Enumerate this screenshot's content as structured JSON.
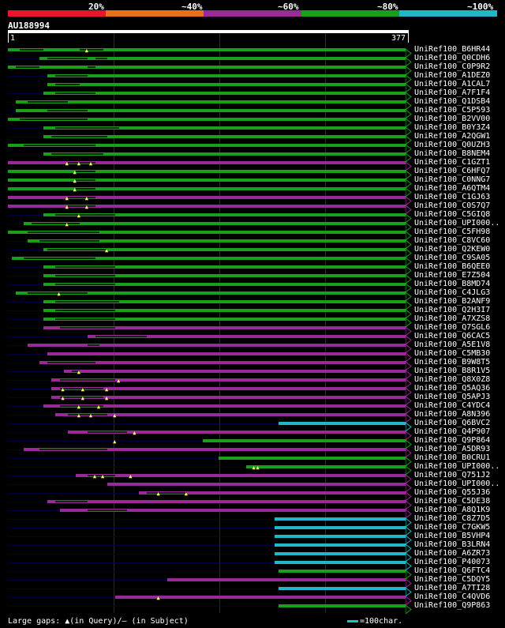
{
  "legend": {
    "labels": [
      "20%",
      "~40%",
      "~60%",
      "~80%",
      "~100%"
    ],
    "colors": [
      "#e8152d",
      "#e8701a",
      "#9a2a98",
      "#19a019",
      "#20b8c8"
    ]
  },
  "query": {
    "id": "AU188994",
    "start": "1",
    "end": "377"
  },
  "footer": {
    "gaps_text": "Large gaps: ▲(in Query)/– (in Subject)",
    "key_text": "=100char."
  },
  "rows": [
    {
      "label": "UniRef100_B6HR44",
      "color": "#19a019",
      "s": 0.0,
      "gaps": [
        [
          0.03,
          0.09
        ],
        [
          0.18,
          0.24
        ]
      ],
      "tri": [
        0.2
      ]
    },
    {
      "label": "UniRef100_Q0CDH6",
      "color": "#19a019",
      "s": 0.08,
      "gaps": [
        [
          0.1,
          0.2
        ],
        [
          0.22,
          0.25
        ]
      ],
      "tri": []
    },
    {
      "label": "UniRef100_C0P9R2",
      "color": "#19a019",
      "s": 0.0,
      "gaps": [
        [
          0.02,
          0.08
        ],
        [
          0.2,
          0.22
        ]
      ],
      "tri": []
    },
    {
      "label": "UniRef100_A1DEZ0",
      "color": "#19a019",
      "s": 0.1,
      "gaps": [
        [
          0.12,
          0.2
        ]
      ],
      "tri": []
    },
    {
      "label": "UniRef100_A1CAL7",
      "color": "#19a019",
      "s": 0.1,
      "gaps": [
        [
          0.12,
          0.18
        ]
      ],
      "tri": []
    },
    {
      "label": "UniRef100_A7F1F4",
      "color": "#19a019",
      "s": 0.09,
      "gaps": [
        [
          0.12,
          0.22
        ]
      ],
      "tri": []
    },
    {
      "label": "UniRef100_Q1DSB4",
      "color": "#19a019",
      "s": 0.02,
      "gaps": [
        [
          0.05,
          0.15
        ]
      ],
      "tri": []
    },
    {
      "label": "UniRef100_C5P593",
      "color": "#19a019",
      "s": 0.02,
      "gaps": [
        [
          0.1,
          0.2
        ]
      ],
      "tri": []
    },
    {
      "label": "UniRef100_B2VV00",
      "color": "#19a019",
      "s": 0.0,
      "gaps": [
        [
          0.03,
          0.2
        ]
      ],
      "tri": []
    },
    {
      "label": "UniRef100_B0Y3Z4",
      "color": "#19a019",
      "s": 0.09,
      "gaps": [
        [
          0.12,
          0.28
        ]
      ],
      "tri": []
    },
    {
      "label": "UniRef100_A2QGW1",
      "color": "#19a019",
      "s": 0.09,
      "gaps": [
        [
          0.11,
          0.25
        ]
      ],
      "tri": []
    },
    {
      "label": "UniRef100_Q0UZH3",
      "color": "#19a019",
      "s": 0.0,
      "gaps": [
        [
          0.04,
          0.22
        ]
      ],
      "tri": []
    },
    {
      "label": "UniRef100_B8NEM4",
      "color": "#19a019",
      "s": 0.09,
      "gaps": [
        [
          0.11,
          0.24
        ]
      ],
      "tri": []
    },
    {
      "label": "UniRef100_C1GZT1",
      "color": "#9a2a98",
      "s": 0.0,
      "gaps": [
        [
          0.15,
          0.22
        ]
      ],
      "tri": [
        0.15,
        0.18,
        0.21
      ]
    },
    {
      "label": "UniRef100_C6HFQ7",
      "color": "#19a019",
      "s": 0.0,
      "gaps": [
        [
          0.17,
          0.22
        ]
      ],
      "tri": [
        0.17
      ]
    },
    {
      "label": "UniRef100_C0NNG7",
      "color": "#19a019",
      "s": 0.0,
      "gaps": [
        [
          0.17,
          0.22
        ]
      ],
      "tri": [
        0.17
      ]
    },
    {
      "label": "UniRef100_A6QTM4",
      "color": "#19a019",
      "s": 0.0,
      "gaps": [
        [
          0.17,
          0.22
        ]
      ],
      "tri": [
        0.17
      ]
    },
    {
      "label": "UniRef100_C1GJ63",
      "color": "#9a2a98",
      "s": 0.0,
      "gaps": [
        [
          0.15,
          0.22
        ]
      ],
      "tri": [
        0.15,
        0.2
      ]
    },
    {
      "label": "UniRef100_C0S7Q7",
      "color": "#9a2a98",
      "s": 0.0,
      "gaps": [
        [
          0.15,
          0.22
        ]
      ],
      "tri": [
        0.15,
        0.2
      ]
    },
    {
      "label": "UniRef100_C5GIQ8",
      "color": "#19a019",
      "s": 0.09,
      "gaps": [
        [
          0.12,
          0.27
        ]
      ],
      "tri": [
        0.18
      ]
    },
    {
      "label": "UniRef100_UPI000..",
      "color": "#19a019",
      "s": 0.04,
      "gaps": [
        [
          0.06,
          0.18
        ]
      ],
      "tri": [
        0.15
      ]
    },
    {
      "label": "UniRef100_C5FH98",
      "color": "#19a019",
      "s": 0.0,
      "gaps": [
        [
          0.05,
          0.23
        ]
      ],
      "tri": []
    },
    {
      "label": "UniRef100_C8VC60",
      "color": "#19a019",
      "s": 0.05,
      "gaps": [
        [
          0.08,
          0.23
        ]
      ],
      "tri": []
    },
    {
      "label": "UniRef100_Q2KEW0",
      "color": "#19a019",
      "s": 0.09,
      "gaps": [
        [
          0.1,
          0.25
        ]
      ],
      "tri": [
        0.25
      ]
    },
    {
      "label": "UniRef100_C9SA05",
      "color": "#19a019",
      "s": 0.01,
      "gaps": [
        [
          0.04,
          0.22
        ]
      ],
      "tri": []
    },
    {
      "label": "UniRef100_B6QEE0",
      "color": "#19a019",
      "s": 0.09,
      "gaps": [
        [
          0.12,
          0.27
        ]
      ],
      "tri": []
    },
    {
      "label": "UniRef100_E7Z504",
      "color": "#19a019",
      "s": 0.09,
      "gaps": [
        [
          0.12,
          0.27
        ]
      ],
      "tri": []
    },
    {
      "label": "UniRef100_B8MD74",
      "color": "#19a019",
      "s": 0.09,
      "gaps": [
        [
          0.12,
          0.27
        ]
      ],
      "tri": []
    },
    {
      "label": "UniRef100_C4JLG3",
      "color": "#19a019",
      "s": 0.02,
      "gaps": [
        [
          0.05,
          0.2
        ]
      ],
      "tri": [
        0.13
      ]
    },
    {
      "label": "UniRef100_B2ANF9",
      "color": "#19a019",
      "s": 0.09,
      "gaps": [
        [
          0.12,
          0.28
        ]
      ],
      "tri": []
    },
    {
      "label": "UniRef100_Q2H3I7",
      "color": "#19a019",
      "s": 0.09,
      "gaps": [
        [
          0.12,
          0.27
        ]
      ],
      "tri": []
    },
    {
      "label": "UniRef100_A7XZS8",
      "color": "#19a019",
      "s": 0.09,
      "gaps": [
        [
          0.12,
          0.27
        ]
      ],
      "tri": []
    },
    {
      "label": "UniRef100_Q7SGL6",
      "color": "#9a2a98",
      "s": 0.09,
      "gaps": [
        [
          0.13,
          0.27
        ]
      ],
      "tri": []
    },
    {
      "label": "UniRef100_Q6CAC5",
      "color": "#9a2a98",
      "s": 0.2,
      "gaps": [
        [
          0.22,
          0.35
        ]
      ],
      "tri": []
    },
    {
      "label": "UniRef100_A5E1V8",
      "color": "#9a2a98",
      "s": 0.05,
      "gaps": [
        [
          0.2,
          0.23
        ]
      ],
      "tri": []
    },
    {
      "label": "UniRef100_C5MB30",
      "color": "#9a2a98",
      "s": 0.1,
      "gaps": [],
      "tri": []
    },
    {
      "label": "UniRef100_B9W8T5",
      "color": "#9a2a98",
      "s": 0.08,
      "gaps": [
        [
          0.1,
          0.22
        ]
      ],
      "tri": []
    },
    {
      "label": "UniRef100_B8R1V5",
      "color": "#9a2a98",
      "s": 0.14,
      "gaps": [
        [
          0.16,
          0.18
        ]
      ],
      "tri": [
        0.18
      ]
    },
    {
      "label": "UniRef100_Q8X0Z8",
      "color": "#9a2a98",
      "s": 0.11,
      "gaps": [
        [
          0.13,
          0.27
        ]
      ],
      "tri": [
        0.28
      ]
    },
    {
      "label": "UniRef100_Q5AQ36",
      "color": "#9a2a98",
      "s": 0.11,
      "gaps": [
        [
          0.13,
          0.24
        ]
      ],
      "tri": [
        0.14,
        0.19,
        0.25
      ]
    },
    {
      "label": "UniRef100_Q5APJ3",
      "color": "#9a2a98",
      "s": 0.11,
      "gaps": [
        [
          0.13,
          0.24
        ]
      ],
      "tri": [
        0.14,
        0.19,
        0.25
      ]
    },
    {
      "label": "UniRef100_C4YDC4",
      "color": "#9a2a98",
      "s": 0.09,
      "gaps": [
        [
          0.13,
          0.24
        ]
      ],
      "tri": [
        0.18,
        0.23
      ]
    },
    {
      "label": "UniRef100_A8N396",
      "color": "#9a2a98",
      "s": 0.12,
      "gaps": [
        [
          0.15,
          0.25
        ]
      ],
      "tri": [
        0.18,
        0.21,
        0.27
      ]
    },
    {
      "label": "UniRef100_Q6BVC2",
      "color": "#20b8c8",
      "s": 0.68,
      "gaps": [],
      "tri": []
    },
    {
      "label": "UniRef100_Q4P907",
      "color": "#9a2a98",
      "s": 0.15,
      "gaps": [
        [
          0.2,
          0.3
        ]
      ],
      "tri": [
        0.32
      ]
    },
    {
      "label": "UniRef100_Q9P864",
      "color": "#19a019",
      "s": 0.49,
      "gaps": [],
      "tri": [
        0.27
      ]
    },
    {
      "label": "UniRef100_A5DR93",
      "color": "#9a2a98",
      "s": 0.04,
      "gaps": [
        [
          0.08,
          0.25
        ]
      ],
      "tri": []
    },
    {
      "label": "UniRef100_B0CRU1",
      "color": "#19a019",
      "s": 0.53,
      "gaps": [],
      "tri": []
    },
    {
      "label": "UniRef100_UPI000..",
      "color": "#19a019",
      "s": 0.6,
      "gaps": [],
      "tri": [
        0.62,
        0.63
      ]
    },
    {
      "label": "UniRef100_Q751J2",
      "color": "#9a2a98",
      "s": 0.17,
      "gaps": [
        [
          0.2,
          0.27
        ]
      ],
      "tri": [
        0.22,
        0.24,
        0.31
      ]
    },
    {
      "label": "UniRef100_UPI000..",
      "color": "#9a2a98",
      "s": 0.25,
      "gaps": [],
      "tri": []
    },
    {
      "label": "UniRef100_Q55J36",
      "color": "#9a2a98",
      "s": 0.33,
      "gaps": [
        [
          0.35,
          0.45
        ]
      ],
      "tri": [
        0.38,
        0.45
      ]
    },
    {
      "label": "UniRef100_C5DE38",
      "color": "#9a2a98",
      "s": 0.1,
      "gaps": [
        [
          0.12,
          0.2
        ]
      ],
      "tri": []
    },
    {
      "label": "UniRef100_A8Q1K9",
      "color": "#9a2a98",
      "s": 0.13,
      "gaps": [
        [
          0.2,
          0.3
        ]
      ],
      "tri": []
    },
    {
      "label": "UniRef100_C8Z7D5",
      "color": "#20b8c8",
      "s": 0.67,
      "gaps": [],
      "tri": []
    },
    {
      "label": "UniRef100_C7GKW5",
      "color": "#20b8c8",
      "s": 0.67,
      "gaps": [],
      "tri": []
    },
    {
      "label": "UniRef100_B5VHP4",
      "color": "#20b8c8",
      "s": 0.67,
      "gaps": [],
      "tri": []
    },
    {
      "label": "UniRef100_B3LRN4",
      "color": "#20b8c8",
      "s": 0.67,
      "gaps": [],
      "tri": []
    },
    {
      "label": "UniRef100_A6ZR73",
      "color": "#20b8c8",
      "s": 0.67,
      "gaps": [],
      "tri": []
    },
    {
      "label": "UniRef100_P40073",
      "color": "#20b8c8",
      "s": 0.67,
      "gaps": [],
      "tri": []
    },
    {
      "label": "UniRef100_Q6FTC4",
      "color": "#19a019",
      "s": 0.68,
      "gaps": [],
      "tri": []
    },
    {
      "label": "UniRef100_C5DQY5",
      "color": "#9a2a98",
      "s": 0.4,
      "gaps": [],
      "tri": []
    },
    {
      "label": "UniRef100_A7TI28",
      "color": "#20b8c8",
      "s": 0.68,
      "gaps": [],
      "tri": []
    },
    {
      "label": "UniRef100_C4QVD6",
      "color": "#9a2a98",
      "s": 0.27,
      "gaps": [],
      "tri": [
        0.38
      ]
    },
    {
      "label": "UniRef100_Q9P863",
      "color": "#19a019",
      "s": 0.68,
      "gaps": [],
      "tri": []
    }
  ]
}
